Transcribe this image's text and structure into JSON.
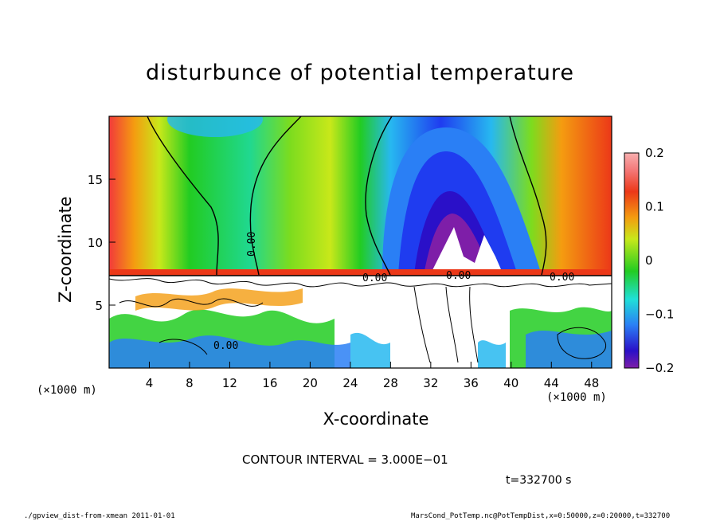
{
  "chart_data": {
    "type": "heatmap",
    "title": "disturbunce of potential temperature",
    "xlabel": "X-coordinate",
    "ylabel": "Z-coordinate",
    "x_unit_label": "(×1000 m)",
    "y_unit_label": "(×1000 m)",
    "xlim": [
      0,
      50
    ],
    "ylim": [
      0,
      20
    ],
    "x_ticks": [
      "4",
      "8",
      "12",
      "16",
      "20",
      "24",
      "28",
      "32",
      "36",
      "40",
      "44",
      "48"
    ],
    "x_tick_values": [
      4,
      8,
      12,
      16,
      20,
      24,
      28,
      32,
      36,
      40,
      44,
      48
    ],
    "y_ticks": [
      "5",
      "10",
      "15"
    ],
    "y_tick_values": [
      5,
      10,
      15
    ],
    "colorbar": {
      "range": [
        -0.2,
        0.2
      ],
      "tick_labels": [
        "0.2",
        "0.1",
        "0",
        "−0.1",
        "−0.2"
      ],
      "tick_values": [
        0.2,
        0.1,
        0,
        -0.1,
        -0.2
      ],
      "colors": [
        "#7e1ea8",
        "#2a10c8",
        "#1f3cf0",
        "#2a7ff5",
        "#27b8f0",
        "#20e0d8",
        "#20d890",
        "#22cc22",
        "#7cdc1e",
        "#c8e81a",
        "#f0e81a",
        "#f8c010",
        "#f49c10",
        "#f07010",
        "#ec3818",
        "#f23a3a",
        "#f47878",
        "#f8b0b0"
      ]
    },
    "contour_labels": [
      "0.00",
      "0.00",
      "0.00",
      "0.00",
      "0.00"
    ],
    "contour_interval": "CONTOUR INTERVAL = 3.000E−01",
    "time": "t=332700 s",
    "grid": false
  },
  "footer": {
    "left": "./gpview_dist-from-xmean  2011-01-01",
    "right": "MarsCond_PotTemp.nc@PotTempDist,x=0:50000,z=0:20000,t=332700"
  }
}
